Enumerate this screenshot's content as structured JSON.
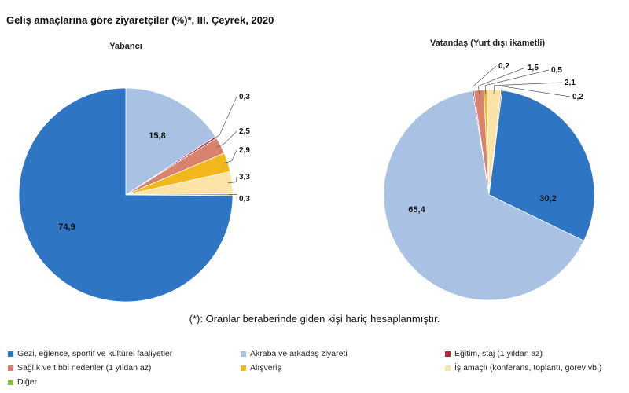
{
  "title": "Geliş amaçlarına göre ziyaretçiler (%)*, III. Çeyrek, 2020",
  "footnote": "(*): Oranlar beraberinde giden kişi hariç hesaplanmıştır.",
  "categories": [
    {
      "name": "Gezi, eğlence, sportif ve kültürel faaliyetler",
      "color": "#2E75C4"
    },
    {
      "name": "Akraba ve arkadaş ziyareti",
      "color": "#A9C1E2"
    },
    {
      "name": "Eğitim, staj (1 yıldan az)",
      "color": "#B3213A"
    },
    {
      "name": "Sağlık ve tıbbi nedenler (1 yıldan az)",
      "color": "#D9826E"
    },
    {
      "name": "Alışveriş",
      "color": "#F2B81B"
    },
    {
      "name": "İş amaçlı (konferans, toplantı, görev vb.)",
      "color": "#FBE2A6"
    },
    {
      "name": "Diğer",
      "color": "#8DB63C"
    }
  ],
  "chart_data": [
    {
      "type": "pie",
      "title": "Yabancı",
      "categories": [
        "Gezi, eğlence, sportif ve kültürel faaliyetler",
        "Akraba ve arkadaş ziyareti",
        "Eğitim, staj (1 yıldan az)",
        "Sağlık ve tıbbi nedenler (1 yıldan az)",
        "Alışveriş",
        "İş amaçlı (konferans, toplantı, görev vb.)",
        "Diğer"
      ],
      "values": [
        74.9,
        15.8,
        0.3,
        2.5,
        2.9,
        3.3,
        0.3
      ],
      "labels": [
        "74,9",
        "15,8",
        "0,3",
        "2,5",
        "2,9",
        "3,3",
        "0,3"
      ]
    },
    {
      "type": "pie",
      "title": "Vatandaş (Yurt dışı ikametli)",
      "categories": [
        "Gezi, eğlence, sportif ve kültürel faaliyetler",
        "Akraba ve arkadaş ziyareti",
        "Eğitim, staj (1 yıldan az)",
        "Sağlık ve tıbbi nedenler (1 yıldan az)",
        "Alışveriş",
        "İş amaçlı (konferans, toplantı, görev vb.)",
        "Diğer"
      ],
      "values": [
        30.2,
        65.4,
        0.2,
        1.5,
        0.5,
        2.1,
        0.2
      ],
      "labels": [
        "30,2",
        "65,4",
        "0,2",
        "1,5",
        "0,5",
        "2,1",
        "0,2"
      ]
    }
  ]
}
